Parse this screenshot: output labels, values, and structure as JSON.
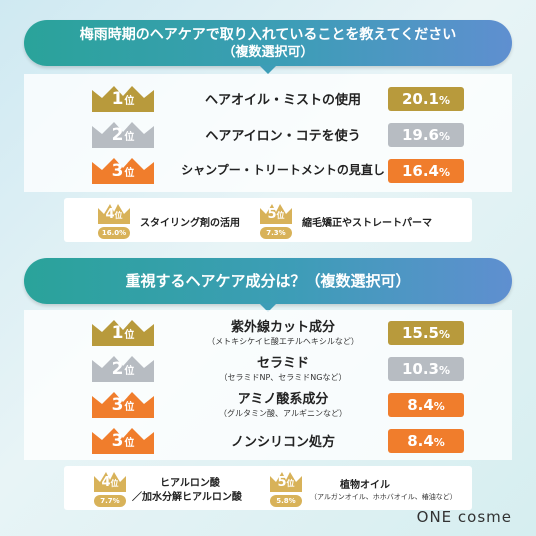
{
  "chart_data": [
    {
      "type": "bar",
      "title_line1": "梅雨時期のヘアケアで取り入れていることを教えてください",
      "title_line2": "（複数選択可）",
      "unit": "%",
      "rank_suffix": "位",
      "items": [
        {
          "rank": "1",
          "label": "ヘアオイル・ミストの使用",
          "value": 20.1,
          "value_text": "20.1"
        },
        {
          "rank": "2",
          "label": "ヘアアイロン・コテを使う",
          "value": 19.6,
          "value_text": "19.6"
        },
        {
          "rank": "3",
          "label": "シャンプー・トリートメントの見直し",
          "value": 16.4,
          "value_text": "16.4"
        },
        {
          "rank": "4",
          "label": "スタイリング剤の活用",
          "value": 16.0,
          "value_text": "16.0%"
        },
        {
          "rank": "5",
          "label": "縮毛矯正やストレートパーマ",
          "value": 7.3,
          "value_text": "7.3%"
        }
      ]
    },
    {
      "type": "bar",
      "title_line1": "重視するヘアケア成分は？（複数選択可）",
      "unit": "%",
      "rank_suffix": "位",
      "items": [
        {
          "rank": "1",
          "label": "紫外線カット成分",
          "sublabel": "（メトキシケイヒ酸エチルヘキシルなど）",
          "value": 15.5,
          "value_text": "15.5"
        },
        {
          "rank": "2",
          "label": "セラミド",
          "sublabel": "（セラミドNP、セラミドNGなど）",
          "value": 10.3,
          "value_text": "10.3"
        },
        {
          "rank": "3",
          "label": "アミノ酸系成分",
          "sublabel": "（グルタミン酸、アルギニンなど）",
          "value": 8.4,
          "value_text": "8.4"
        },
        {
          "rank": "3",
          "label": "ノンシリコン処方",
          "value": 8.4,
          "value_text": "8.4"
        },
        {
          "rank": "4",
          "label": "ヒアルロン酸",
          "label2": "／加水分解ヒアルロン酸",
          "value": 7.7,
          "value_text": "7.7%"
        },
        {
          "rank": "5",
          "label": "植物オイル",
          "sublabel": "（アルガンオイル、ホホバオイル、椿油など）",
          "value": 5.8,
          "value_text": "5.8%"
        }
      ]
    }
  ],
  "colors": {
    "gold": "#b89a3c",
    "silver": "#b7bcc2",
    "bronze": "#f07d2c",
    "minor": "#d8b259"
  },
  "brand": {
    "logo": "ONE cosme"
  }
}
